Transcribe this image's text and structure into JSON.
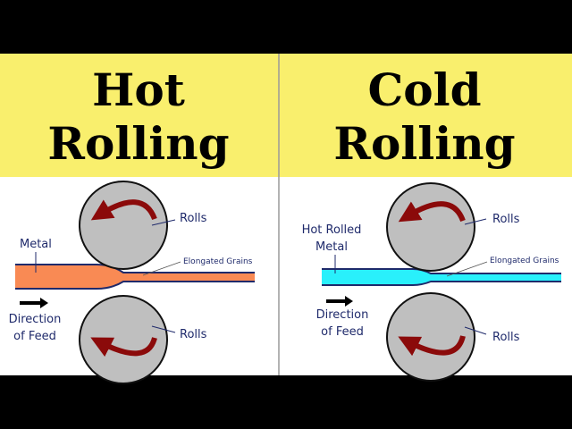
{
  "colors": {
    "header_bg": "#f9ef6d",
    "hot_metal": "#f98a54",
    "cold_metal": "#29f0fb",
    "roll": "#bfbfbf",
    "arrow": "#8b0a0a",
    "outline": "#1f2a6b"
  },
  "left": {
    "title_line1": "Hot",
    "title_line2": "Rolling",
    "metal_label": "Metal",
    "rolls_top": "Rolls",
    "rolls_bottom": "Rolls",
    "grains_label": "Elongated Grains",
    "feed_line1": "Direction",
    "feed_line2": "of Feed"
  },
  "right": {
    "title_line1": "Cold",
    "title_line2": "Rolling",
    "metal_line1": "Hot Rolled",
    "metal_line2": "Metal",
    "rolls_top": "Rolls",
    "rolls_bottom": "Rolls",
    "grains_label": "Elongated Grains",
    "feed_line1": "Direction",
    "feed_line2": "of Feed"
  }
}
